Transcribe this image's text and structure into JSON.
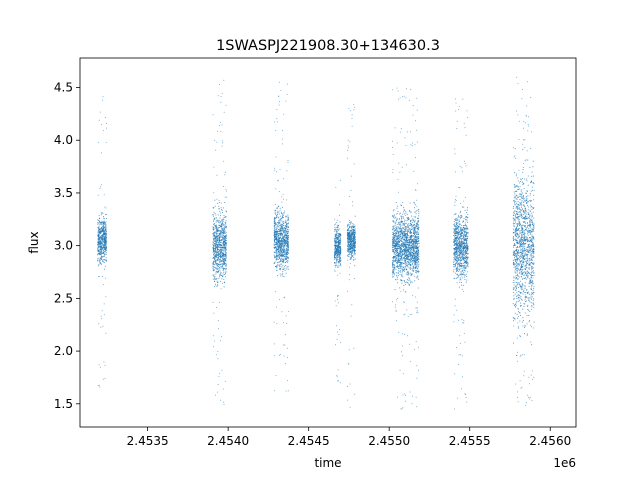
{
  "chart_data": {
    "type": "scatter",
    "title": "1SWASPJ221908.30+134630.3",
    "xlabel": "time",
    "ylabel": "flux",
    "x_offset_label": "1e6",
    "xlim": [
      2453080,
      2456160
    ],
    "ylim": [
      1.28,
      4.78
    ],
    "xticks": [
      2453500,
      2454000,
      2454500,
      2455000,
      2455500,
      2456000
    ],
    "xtick_labels": [
      "2.4535",
      "2.4540",
      "2.4545",
      "2.4550",
      "2.4555",
      "2.4560"
    ],
    "yticks": [
      1.5,
      2.0,
      2.5,
      3.0,
      3.5,
      4.0,
      4.5
    ],
    "ytick_labels": [
      "1.5",
      "2.0",
      "2.5",
      "3.0",
      "3.5",
      "4.0",
      "4.5"
    ],
    "grid": false,
    "legend": "none",
    "marker_color": "#1f77b4",
    "series": [
      {
        "observing_seasons": [
          {
            "x_range": [
              2453190,
              2453245
            ],
            "flux_center": 3.05,
            "flux_core_range": [
              2.7,
              3.4
            ],
            "flux_extreme_range": [
              1.5,
              4.5
            ]
          },
          {
            "x_range": [
              2453905,
              2453990
            ],
            "flux_center": 3.0,
            "flux_core_range": [
              2.5,
              3.5
            ],
            "flux_extreme_range": [
              1.45,
              4.6
            ]
          },
          {
            "x_range": [
              2454285,
              2454375
            ],
            "flux_center": 3.05,
            "flux_core_range": [
              2.6,
              3.4
            ],
            "flux_extreme_range": [
              1.5,
              4.55
            ]
          },
          {
            "x_range": [
              2454660,
              2454700
            ],
            "flux_center": 3.0,
            "flux_core_range": [
              2.75,
              3.3
            ],
            "flux_extreme_range": [
              1.65,
              3.65
            ]
          },
          {
            "x_range": [
              2454740,
              2454790
            ],
            "flux_center": 3.05,
            "flux_core_range": [
              2.8,
              3.3
            ],
            "flux_extreme_range": [
              1.45,
              4.55
            ]
          },
          {
            "x_range": [
              2455020,
              2455185
            ],
            "flux_center": 3.0,
            "flux_core_range": [
              2.5,
              3.45
            ],
            "flux_extreme_range": [
              1.45,
              4.5
            ]
          },
          {
            "x_range": [
              2455400,
              2455490
            ],
            "flux_center": 3.0,
            "flux_core_range": [
              2.55,
              3.45
            ],
            "flux_extreme_range": [
              1.45,
              4.45
            ]
          },
          {
            "x_range": [
              2455770,
              2455900
            ],
            "flux_center": 3.0,
            "flux_core_range": [
              2.0,
              4.0
            ],
            "flux_extreme_range": [
              1.45,
              4.6
            ]
          }
        ]
      }
    ]
  }
}
